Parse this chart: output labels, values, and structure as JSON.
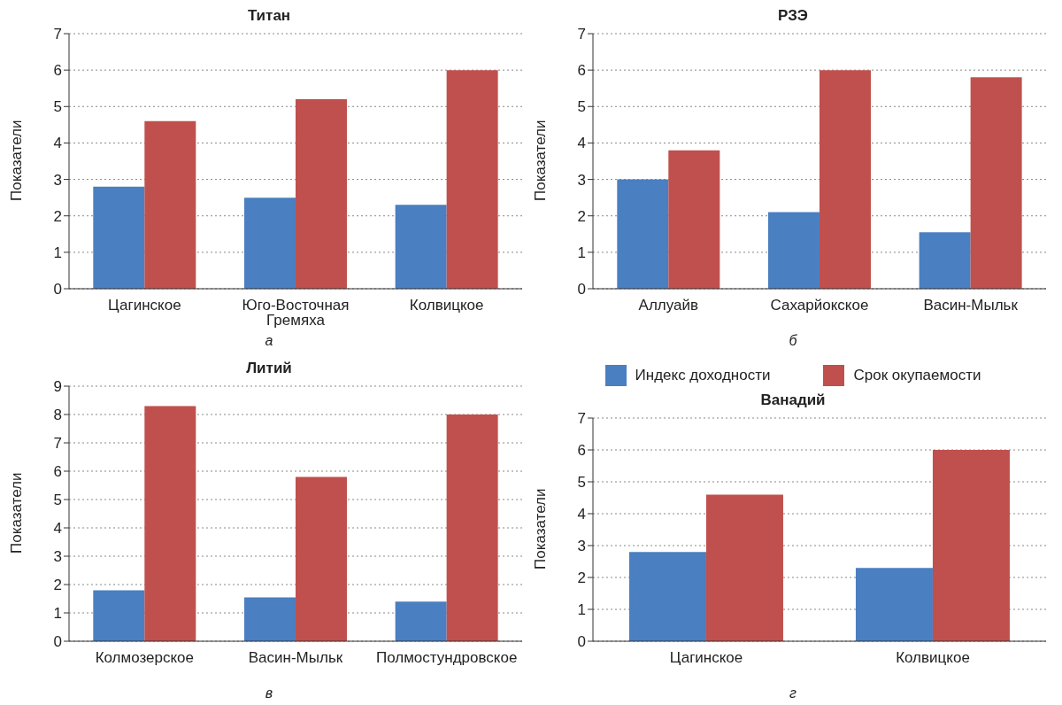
{
  "chart_data": [
    {
      "type": "bar",
      "title": "Титан",
      "ylabel": "Показатели",
      "categories": [
        "Цагинское",
        "Юго-Восточная Гремяха",
        "Колвицкое"
      ],
      "series": [
        {
          "color": "#4a7fc1",
          "values": [
            2.8,
            2.5,
            2.3
          ]
        },
        {
          "color": "#c0504d",
          "values": [
            4.6,
            5.2,
            6.0
          ]
        }
      ],
      "ylim": [
        0,
        7
      ],
      "yticks": [
        0,
        1,
        2,
        3,
        4,
        5,
        6,
        7
      ],
      "grid": "y",
      "annotations": [
        "а"
      ]
    },
    {
      "type": "bar",
      "title": "РЗЭ",
      "ylabel": "Показатели",
      "categories": [
        "Аллуайв",
        "Сахарйокское",
        "Васин-Мыльк"
      ],
      "series": [
        {
          "color": "#4a7fc1",
          "values": [
            3.0,
            2.1,
            1.55
          ]
        },
        {
          "color": "#c0504d",
          "values": [
            3.8,
            6.0,
            5.8
          ]
        }
      ],
      "ylim": [
        0,
        7
      ],
      "yticks": [
        0,
        1,
        2,
        3,
        4,
        5,
        6,
        7
      ],
      "grid": "y",
      "annotations": [
        "б"
      ]
    },
    {
      "type": "bar",
      "title": "Литий",
      "ylabel": "Показатели",
      "categories": [
        "Колмозерское",
        "Васин-Мыльк",
        "Полмостундровское"
      ],
      "series": [
        {
          "color": "#4a7fc1",
          "values": [
            1.8,
            1.55,
            1.4
          ]
        },
        {
          "color": "#c0504d",
          "values": [
            8.3,
            5.8,
            8.0
          ]
        }
      ],
      "ylim": [
        0,
        9
      ],
      "yticks": [
        0,
        1,
        2,
        3,
        4,
        5,
        6,
        7,
        8,
        9
      ],
      "grid": "y",
      "annotations": [
        "в"
      ]
    },
    {
      "type": "bar",
      "title": "Ванадий",
      "ylabel": "Показатели",
      "categories": [
        "Цагинское",
        "Колвицкое"
      ],
      "series": [
        {
          "name": "Индекс доходности",
          "color": "#4a7fc1",
          "values": [
            2.8,
            2.3
          ]
        },
        {
          "name": "Срок окупаемости",
          "color": "#c0504d",
          "values": [
            4.6,
            6.0
          ]
        }
      ],
      "ylim": [
        0,
        7
      ],
      "yticks": [
        0,
        1,
        2,
        3,
        4,
        5,
        6,
        7
      ],
      "grid": "y",
      "legend": "top",
      "annotations": [
        "г"
      ]
    }
  ]
}
